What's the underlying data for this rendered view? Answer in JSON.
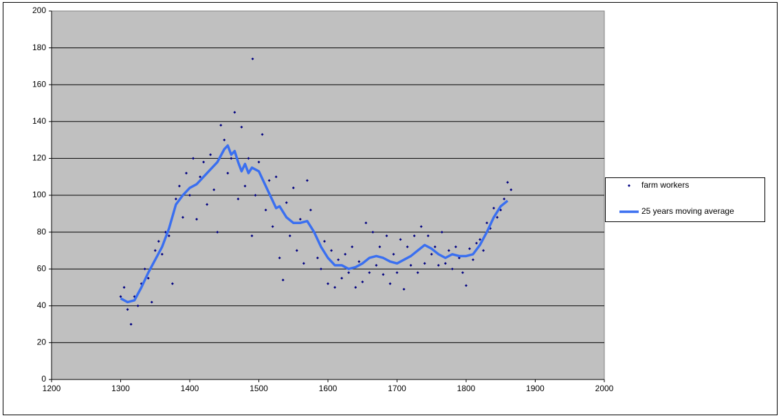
{
  "chart_data": {
    "type": "scatter",
    "xlim": [
      1200,
      2000
    ],
    "xticks": [
      1200,
      1300,
      1400,
      1500,
      1600,
      1700,
      1800,
      1900,
      2000
    ],
    "ylim": [
      0,
      200
    ],
    "yticks": [
      0,
      20,
      40,
      60,
      80,
      100,
      120,
      140,
      160,
      180,
      200
    ],
    "grid": true,
    "legend": "right",
    "series": [
      {
        "name": "farm workers",
        "kind": "points",
        "color": "#000080",
        "x": [
          1300,
          1305,
          1310,
          1315,
          1320,
          1325,
          1330,
          1335,
          1340,
          1345,
          1350,
          1355,
          1360,
          1365,
          1370,
          1375,
          1380,
          1385,
          1390,
          1395,
          1400,
          1405,
          1410,
          1415,
          1420,
          1425,
          1430,
          1435,
          1440,
          1445,
          1450,
          1455,
          1460,
          1465,
          1470,
          1475,
          1480,
          1485,
          1490,
          1491,
          1495,
          1500,
          1505,
          1510,
          1515,
          1520,
          1525,
          1530,
          1535,
          1540,
          1545,
          1550,
          1555,
          1560,
          1565,
          1570,
          1575,
          1580,
          1585,
          1590,
          1595,
          1600,
          1605,
          1610,
          1615,
          1620,
          1625,
          1630,
          1635,
          1640,
          1645,
          1650,
          1655,
          1660,
          1665,
          1670,
          1675,
          1680,
          1685,
          1690,
          1695,
          1700,
          1705,
          1710,
          1715,
          1720,
          1725,
          1730,
          1735,
          1740,
          1745,
          1750,
          1755,
          1760,
          1765,
          1770,
          1775,
          1780,
          1785,
          1790,
          1795,
          1800,
          1805,
          1810,
          1815,
          1820,
          1825,
          1830,
          1835,
          1840,
          1845,
          1850,
          1855,
          1860,
          1865
        ],
        "values": [
          45,
          50,
          38,
          30,
          45,
          40,
          52,
          60,
          55,
          42,
          70,
          75,
          68,
          80,
          78,
          52,
          98,
          105,
          88,
          112,
          100,
          120,
          87,
          110,
          118,
          95,
          122,
          103,
          80,
          138,
          130,
          112,
          120,
          145,
          98,
          137,
          105,
          120,
          78,
          174,
          100,
          118,
          133,
          92,
          108,
          83,
          110,
          66,
          54,
          96,
          78,
          104,
          70,
          87,
          63,
          108,
          92,
          80,
          66,
          60,
          75,
          52,
          70,
          50,
          65,
          55,
          68,
          58,
          72,
          50,
          64,
          53,
          85,
          58,
          80,
          62,
          72,
          57,
          78,
          52,
          68,
          58,
          76,
          49,
          72,
          62,
          78,
          58,
          83,
          63,
          78,
          68,
          72,
          62,
          80,
          63,
          70,
          60,
          72,
          66,
          58,
          51,
          71,
          65,
          74,
          76,
          70,
          85,
          82,
          93,
          88,
          92,
          98,
          107,
          103
        ]
      },
      {
        "name": "25 years moving average",
        "kind": "line",
        "color": "#3a6ff0",
        "x": [
          1300,
          1310,
          1320,
          1330,
          1340,
          1350,
          1360,
          1370,
          1380,
          1390,
          1400,
          1410,
          1420,
          1430,
          1440,
          1450,
          1455,
          1460,
          1465,
          1470,
          1475,
          1480,
          1485,
          1490,
          1500,
          1510,
          1520,
          1525,
          1530,
          1540,
          1550,
          1560,
          1570,
          1580,
          1590,
          1600,
          1610,
          1620,
          1630,
          1640,
          1650,
          1660,
          1670,
          1680,
          1690,
          1700,
          1710,
          1720,
          1730,
          1740,
          1750,
          1760,
          1770,
          1780,
          1790,
          1800,
          1810,
          1820,
          1830,
          1840,
          1850,
          1860
        ],
        "values": [
          44,
          42,
          43,
          50,
          58,
          65,
          72,
          82,
          95,
          100,
          104,
          106,
          110,
          114,
          118,
          125,
          127,
          122,
          124,
          118,
          113,
          117,
          112,
          115,
          113,
          105,
          97,
          93,
          94,
          88,
          85,
          85,
          86,
          80,
          72,
          66,
          62,
          62,
          60,
          61,
          63,
          66,
          67,
          66,
          64,
          63,
          65,
          67,
          70,
          73,
          71,
          68,
          66,
          68,
          67,
          67,
          68,
          73,
          80,
          88,
          94,
          97
        ]
      }
    ]
  }
}
